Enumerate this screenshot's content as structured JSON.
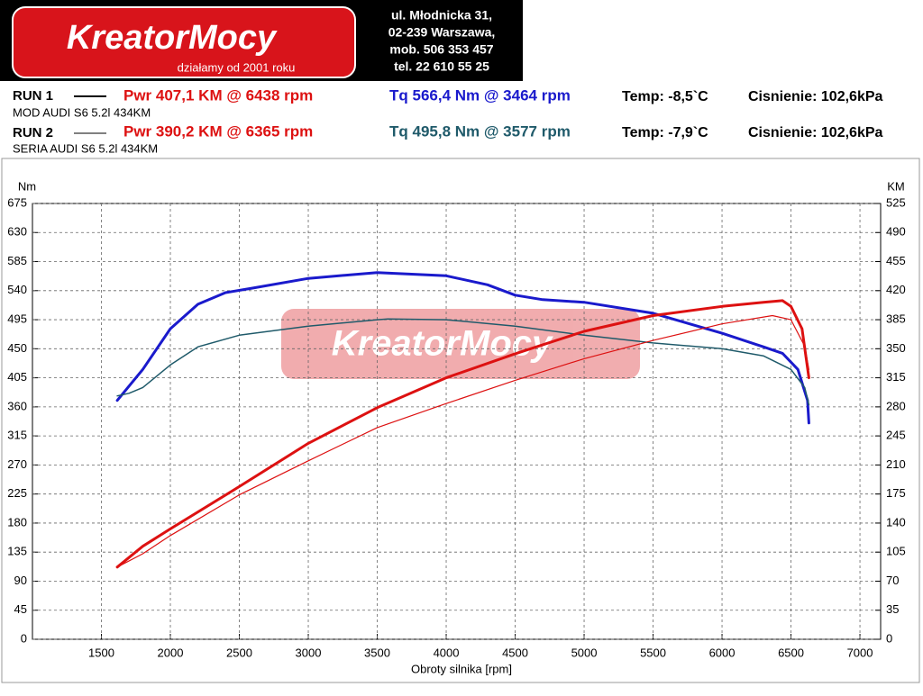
{
  "header": {
    "logo": "KreatorMocy",
    "slogan": "działamy od 2001 roku",
    "address": [
      "ul. Młodnicka 31,",
      "02-239  Warszawa,",
      "mob.  506 353 457",
      "tel.  22 610 55 25"
    ]
  },
  "runs": [
    {
      "label": "RUN 1",
      "pwr": "Pwr  407,1 KM @ 6438 rpm",
      "tq": "Tq 566,4 Nm @ 3464 rpm",
      "temp": "Temp: -8,5`C",
      "pressure": "Cisnienie: 102,6kPa",
      "car": "MOD AUDI S6 5.2l 434KM"
    },
    {
      "label": "RUN 2",
      "pwr": "Pwr  390,2 KM @ 6365 rpm",
      "tq": "Tq 495,8 Nm @ 3577 rpm",
      "temp": "Temp: -7,9`C",
      "pressure": "Cisnienie: 102,6kPa",
      "car": "SERIA AUDI S6 5.2l 434KM"
    }
  ],
  "chart_data": {
    "type": "line",
    "xlabel": "Obroty silnika [rpm]",
    "ylabel": "Nm",
    "y2label": "KM",
    "xlim": [
      1000,
      7150
    ],
    "xticks": [
      1500,
      2000,
      2500,
      3000,
      3500,
      4000,
      4500,
      5000,
      5500,
      6000,
      6500,
      7000
    ],
    "ylim": [
      0,
      675
    ],
    "yticks": [
      0,
      45,
      90,
      135,
      180,
      225,
      270,
      315,
      360,
      405,
      450,
      495,
      540,
      585,
      630,
      675
    ],
    "y2lim": [
      0,
      525
    ],
    "y2ticks": [
      0,
      35,
      70,
      105,
      140,
      175,
      210,
      245,
      280,
      315,
      350,
      385,
      420,
      455,
      490,
      525
    ],
    "grid": true,
    "series": [
      {
        "name": "RUN 1",
        "color": "#1a1acc",
        "line_width": 3,
        "x": [
          1615,
          1800,
          2000,
          2200,
          2400,
          2600,
          3000,
          3500,
          4000,
          4300,
          4500,
          4700,
          5000,
          5500,
          6000,
          6300,
          6438,
          6550,
          6620,
          6630
        ],
        "values": [
          370,
          418,
          481,
          519,
          537,
          544,
          559,
          568,
          563,
          549,
          533,
          526,
          522,
          505,
          474,
          453,
          443,
          418,
          370,
          335
        ]
      },
      {
        "name": "RUN 2",
        "color": "#1f5a6a",
        "line_width": 1.5,
        "x": [
          1615,
          1700,
          1800,
          2000,
          2200,
          2500,
          3000,
          3500,
          3577,
          4000,
          4500,
          5000,
          5500,
          6000,
          6300,
          6500,
          6600,
          6630
        ],
        "values": [
          377,
          381,
          390,
          425,
          453,
          471,
          485,
          495,
          496,
          495,
          485,
          471,
          459,
          450,
          439,
          418,
          390,
          363
        ]
      },
      {
        "name": "RUN 1",
        "color": "#dd1111",
        "line_width": 3,
        "axis": "y2",
        "x": [
          1615,
          1800,
          2000,
          2500,
          3000,
          3500,
          4000,
          4500,
          5000,
          5500,
          6000,
          6300,
          6438,
          6500,
          6580,
          6630
        ],
        "values": [
          87,
          112,
          133,
          184,
          236,
          279,
          315,
          344,
          371,
          390,
          401,
          406,
          408,
          401,
          374,
          315
        ]
      },
      {
        "name": "RUN 2",
        "color": "#dd1111",
        "line_width": 1.2,
        "axis": "y2",
        "x": [
          1615,
          1800,
          2000,
          2500,
          3000,
          3500,
          4000,
          4500,
          5000,
          5500,
          6000,
          6365,
          6500,
          6600,
          6630
        ],
        "values": [
          87,
          103,
          125,
          174,
          215,
          255,
          284,
          312,
          338,
          360,
          380,
          390,
          385,
          353,
          325
        ]
      }
    ]
  }
}
